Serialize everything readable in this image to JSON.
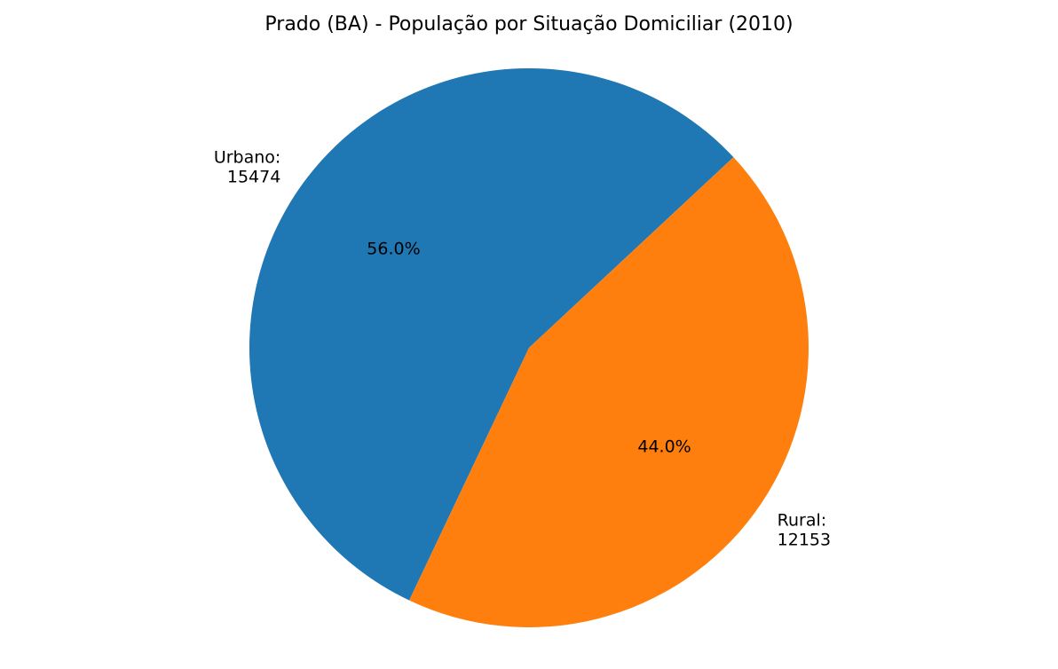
{
  "chart_data": {
    "type": "pie",
    "title": "Prado (BA) - População por Situação Domiciliar (2010)",
    "slices": [
      {
        "label": "Urbano:",
        "value": 15474,
        "value_text": "15474",
        "percent_text": "56.0%",
        "color": "#1f77b4"
      },
      {
        "label": "Rural:",
        "value": 12153,
        "value_text": "12153",
        "percent_text": "44.0%",
        "color": "#ff7f0e"
      }
    ]
  }
}
